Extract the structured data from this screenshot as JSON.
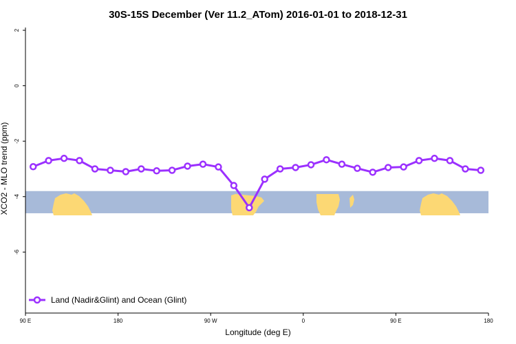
{
  "chart_data": {
    "type": "line",
    "title": "30S-15S December (Ver 11.2_ATom)   2016-01-01 to 2018-12-31",
    "xlabel": "Longitude (deg E)",
    "ylabel": "XCO2 - MLO trend (ppm)",
    "xlim": [
      90,
      540
    ],
    "ylim": [
      -8.2,
      2.1
    ],
    "x_ticks": [
      {
        "value": 90,
        "label": "90 E"
      },
      {
        "value": 180,
        "label": "180"
      },
      {
        "value": 270,
        "label": "90 W"
      },
      {
        "value": 360,
        "label": "0"
      },
      {
        "value": 450,
        "label": "90 E"
      },
      {
        "value": 540,
        "label": "180"
      }
    ],
    "y_ticks": [
      {
        "value": 2,
        "label": "2"
      },
      {
        "value": 0,
        "label": "0"
      },
      {
        "value": -2,
        "label": "-2"
      },
      {
        "value": -4,
        "label": "-4"
      },
      {
        "value": -6,
        "label": "-6"
      }
    ],
    "series": [
      {
        "name": "Land (Nadir&Glint) and Ocean (Glint)",
        "color": "#9b30ff",
        "x": [
          97.5,
          112.5,
          127.5,
          142.5,
          157.5,
          172.5,
          187.5,
          202.5,
          217.5,
          232.5,
          247.5,
          262.5,
          277.5,
          292.5,
          307.5,
          322.5,
          337.5,
          352.5,
          367.5,
          382.5,
          397.5,
          412.5,
          427.5,
          442.5,
          457.5,
          472.5,
          487.5,
          502.5,
          517.5,
          532.5
        ],
        "values": [
          -2.92,
          -2.7,
          -2.62,
          -2.7,
          -3.0,
          -3.05,
          -3.1,
          -3.0,
          -3.07,
          -3.05,
          -2.9,
          -2.83,
          -2.93,
          -3.6,
          -4.4,
          -3.37,
          -3.0,
          -2.95,
          -2.85,
          -2.67,
          -2.83,
          -2.98,
          -3.12,
          -2.95,
          -2.93,
          -2.7,
          -2.62,
          -2.7,
          -3.0,
          -3.05
        ]
      }
    ],
    "legend": {
      "position": "bottom-left",
      "label": "Land (Nadir&Glint) and Ocean (Glint)"
    },
    "map_strip": {
      "y_range": [
        -4.6,
        -3.8
      ],
      "ocean_color": "#a7bad9",
      "land_color": "#fcd874",
      "description": "world map band"
    },
    "grid": false
  }
}
